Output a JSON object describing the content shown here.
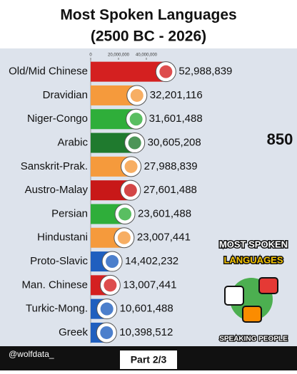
{
  "chart_data": {
    "type": "bar",
    "orientation": "horizontal",
    "title": "Most Spoken Languages",
    "subtitle": "(2500 BC - 2026)",
    "categories": [
      "Old/Mid Chinese",
      "Dravidian",
      "Niger-Congo",
      "Arabic",
      "Sanskrit-Prak.",
      "Austro-Malay",
      "Persian",
      "Hindustani",
      "Proto-Slavic",
      "Man. Chinese",
      "Turkic-Mong.",
      "Greek"
    ],
    "values": [
      52988839,
      32201116,
      31601488,
      30605208,
      27988839,
      27601488,
      23601488,
      23007441,
      14402232,
      13007441,
      10601488,
      10398512
    ],
    "value_labels": [
      "52,988,839",
      "32,201,116",
      "31,601,488",
      "30,605,208",
      "27,988,839",
      "27,601,488",
      "23,601,488",
      "23,007,441",
      "14,402,232",
      "13,007,441",
      "10,601,488",
      "10,398,512"
    ],
    "colors": [
      "#d42020",
      "#f59a3c",
      "#2fae3a",
      "#1f7a2e",
      "#f59a3c",
      "#c81818",
      "#2fae3a",
      "#f59a3c",
      "#1f5fbf",
      "#d42020",
      "#1f5fbf",
      "#1f5fbf"
    ],
    "xlim": [
      0,
      140000000
    ],
    "xticks": [
      0,
      {
        "value": 20000000,
        "label": "20,000,000"
      },
      {
        "value": 40000000,
        "label": "40,000,000"
      }
    ],
    "year": 850
  },
  "branding": {
    "logo_line1": "MOST SPOKEN",
    "logo_line2": "LANGUAGES",
    "logo_caption": "SPEAKING PEOPLE",
    "handle": "@wolfdata_",
    "part": "Part 2/3"
  }
}
